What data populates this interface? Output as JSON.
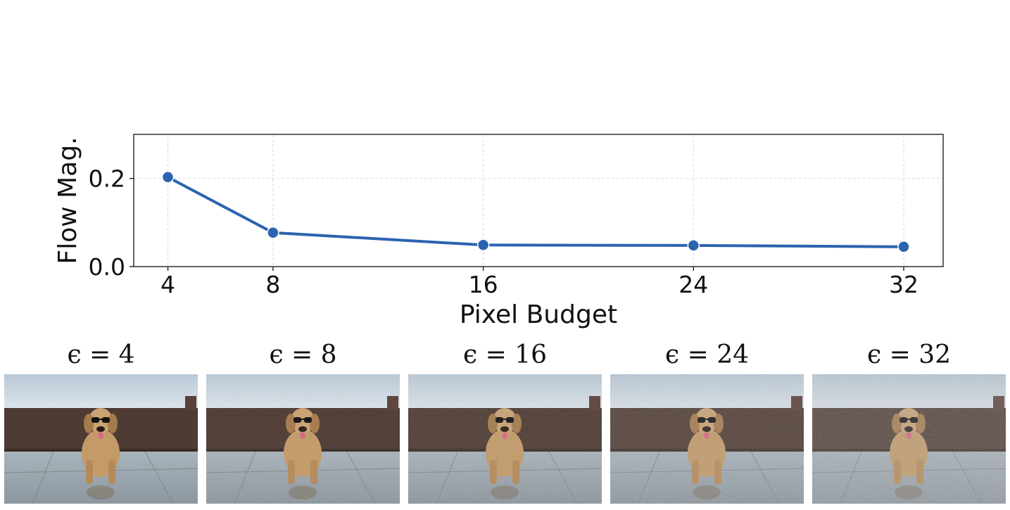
{
  "chart_data": {
    "type": "line",
    "xlabel": "Pixel Budget",
    "ylabel": "Flow Mag.",
    "x": [
      4,
      8,
      16,
      24,
      32
    ],
    "xticks": [
      "4",
      "8",
      "16",
      "24",
      "32"
    ],
    "yticks": [
      0.0,
      0.2
    ],
    "ytick_labels": [
      "0.0",
      "0.2"
    ],
    "xlim": [
      2.7,
      33.5
    ],
    "ylim": [
      0.0,
      0.3
    ],
    "grid": true,
    "series": [
      {
        "values": [
          0.203,
          0.077,
          0.049,
          0.048,
          0.045
        ],
        "color": "#2b63b0",
        "marker": "circle"
      }
    ]
  },
  "panels": [
    {
      "caption": "ϵ = 4",
      "noise": 0.0
    },
    {
      "caption": "ϵ = 8",
      "noise": 0.1
    },
    {
      "caption": "ϵ = 16",
      "noise": 0.2
    },
    {
      "caption": "ϵ = 24",
      "noise": 0.35
    },
    {
      "caption": "ϵ = 32",
      "noise": 0.5
    }
  ]
}
